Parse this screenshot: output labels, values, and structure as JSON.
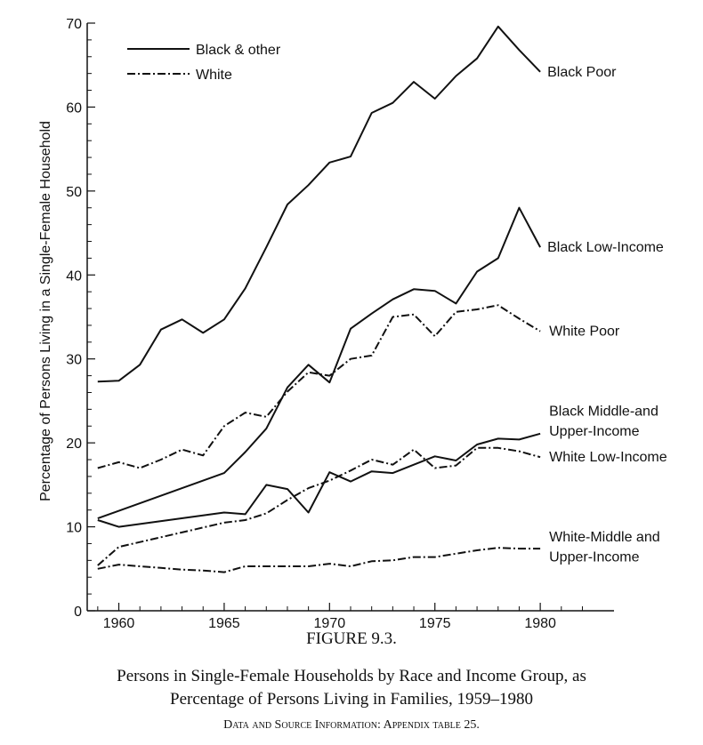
{
  "chart_data": {
    "type": "line",
    "ylabel": "Percentage of Persons Living in a Single-Female Household",
    "xlabel": "",
    "xlim": [
      1958.5,
      1983.5
    ],
    "ylim": [
      0,
      70
    ],
    "x_ticks": [
      1960,
      1965,
      1970,
      1975,
      1980
    ],
    "y_ticks": [
      0,
      10,
      20,
      30,
      40,
      50,
      60,
      70
    ],
    "legend": {
      "position": "top-left",
      "entries": [
        {
          "label": "Black & other",
          "style": "solid"
        },
        {
          "label": "White",
          "style": "dashdot"
        }
      ]
    },
    "series": [
      {
        "label": "Black Poor",
        "race": "Black & other",
        "style": "solid",
        "x": [
          1959,
          1960,
          1961,
          1962,
          1963,
          1964,
          1965,
          1966,
          1967,
          1968,
          1969,
          1970,
          1971,
          1972,
          1973,
          1974,
          1975,
          1976,
          1977,
          1978,
          1979,
          1980
        ],
        "y": [
          27.3,
          27.4,
          29.3,
          33.5,
          34.7,
          33.1,
          34.7,
          38.4,
          43.3,
          48.4,
          50.7,
          53.4,
          54.1,
          59.3,
          60.5,
          63.0,
          61.0,
          63.7,
          65.8,
          69.6,
          66.8,
          64.2
        ]
      },
      {
        "label": "Black Low-Income",
        "race": "Black & other",
        "style": "solid",
        "x": [
          1959,
          1965,
          1966,
          1967,
          1968,
          1969,
          1970,
          1971,
          1972,
          1973,
          1974,
          1975,
          1976,
          1977,
          1978,
          1979,
          1980
        ],
        "y": [
          11.0,
          16.4,
          18.9,
          21.7,
          26.6,
          29.3,
          27.2,
          33.6,
          35.4,
          37.1,
          38.3,
          38.1,
          36.6,
          40.4,
          42.0,
          48.0,
          43.3
        ]
      },
      {
        "label": "White Poor",
        "race": "White",
        "style": "dashdot",
        "x": [
          1959,
          1960,
          1961,
          1962,
          1963,
          1964,
          1965,
          1966,
          1967,
          1968,
          1969,
          1970,
          1971,
          1972,
          1973,
          1974,
          1975,
          1976,
          1977,
          1978,
          1979,
          1980
        ],
        "y": [
          17.0,
          17.7,
          17.0,
          18.0,
          19.2,
          18.5,
          22.0,
          23.6,
          23.1,
          26.1,
          28.4,
          28.0,
          30.0,
          30.4,
          35.0,
          35.3,
          32.7,
          35.6,
          35.9,
          36.4,
          34.8,
          33.3
        ]
      },
      {
        "label": "Black Middle-and Upper-Income",
        "race": "Black & other",
        "style": "solid",
        "x": [
          1959,
          1960,
          1965,
          1966,
          1967,
          1968,
          1969,
          1970,
          1971,
          1972,
          1973,
          1974,
          1975,
          1976,
          1977,
          1978,
          1979,
          1980
        ],
        "y": [
          10.8,
          10.0,
          11.7,
          11.5,
          15.0,
          14.5,
          11.7,
          16.5,
          15.4,
          16.6,
          16.4,
          17.4,
          18.4,
          17.9,
          19.8,
          20.5,
          20.4,
          21.1
        ]
      },
      {
        "label": "White Low-Income",
        "race": "White",
        "style": "dashdot",
        "x": [
          1959,
          1960,
          1965,
          1966,
          1967,
          1968,
          1969,
          1970,
          1971,
          1972,
          1973,
          1974,
          1975,
          1976,
          1977,
          1978,
          1979,
          1980
        ],
        "y": [
          5.4,
          7.6,
          10.5,
          10.8,
          11.6,
          13.2,
          14.6,
          15.5,
          16.7,
          18.0,
          17.4,
          19.2,
          17.0,
          17.3,
          19.4,
          19.4,
          19.0,
          18.3
        ]
      },
      {
        "label": "White-Middle and Upper-Income",
        "race": "White",
        "style": "dashdot",
        "x": [
          1959,
          1960,
          1961,
          1962,
          1963,
          1964,
          1965,
          1966,
          1967,
          1968,
          1969,
          1970,
          1971,
          1972,
          1973,
          1974,
          1975,
          1976,
          1977,
          1978,
          1979,
          1980
        ],
        "y": [
          5.0,
          5.5,
          5.3,
          5.1,
          4.9,
          4.8,
          4.6,
          5.3,
          5.3,
          5.3,
          5.3,
          5.6,
          5.3,
          5.9,
          6.0,
          6.4,
          6.4,
          6.8,
          7.2,
          7.5,
          7.4,
          7.4
        ]
      }
    ]
  },
  "caption": {
    "figure_number": "FIGURE 9.3.",
    "title_line1": "Persons in Single-Female Households by Race and Income Group, as",
    "title_line2": "Percentage of Persons Living in Families, 1959–1980",
    "source": "Data and Source Information: Appendix table 25."
  }
}
